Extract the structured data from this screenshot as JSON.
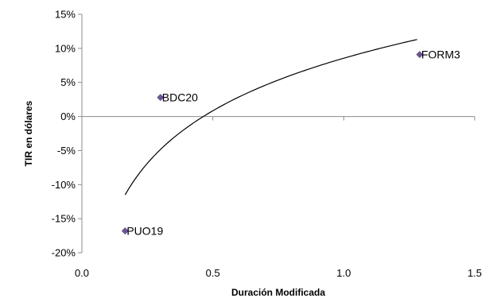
{
  "chart_data": {
    "type": "scatter",
    "xlabel": "Duración Modificada",
    "ylabel": "TIR en dólares",
    "xlim": [
      0,
      1.5
    ],
    "ylim": [
      -20,
      15
    ],
    "xticks": [
      0,
      0.5,
      1.0,
      1.5
    ],
    "xtick_labels": [
      "0.0",
      "0.5",
      "1.0",
      "1.5"
    ],
    "yticks": [
      -20,
      -15,
      -10,
      -5,
      0,
      5,
      10,
      15
    ],
    "ytick_labels": [
      "-20%",
      "-15%",
      "-10%",
      "-5%",
      "0%",
      "5%",
      "10%",
      "15%"
    ],
    "grid": false,
    "legend": false,
    "points": [
      {
        "label": "PUO19",
        "x": 0.165,
        "y": -16.8
      },
      {
        "label": "BDC20",
        "x": 0.3,
        "y": 2.8
      },
      {
        "label": "FORM3",
        "x": 1.29,
        "y": 9.1
      }
    ],
    "trendline": {
      "type": "logarithmic",
      "x_range": [
        0.165,
        1.28
      ],
      "y_range": [
        -11.5,
        11.3
      ]
    },
    "colors": {
      "marker": "#6a5591",
      "axis": "#8c8c8c",
      "trend": "#000000"
    }
  }
}
